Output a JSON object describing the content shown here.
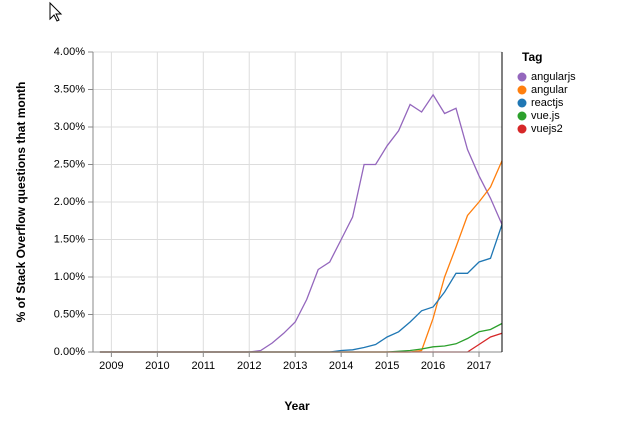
{
  "chart_data": {
    "type": "line",
    "x_label": "Year",
    "y_label": "% of Stack Overflow questions that month",
    "legend_title": "Tag",
    "legend_position": "right",
    "grid": true,
    "xlim": [
      2008.6,
      2017.5
    ],
    "xticks": [
      2009,
      2010,
      2011,
      2012,
      2013,
      2014,
      2015,
      2016,
      2017
    ],
    "ylim": [
      0,
      4
    ],
    "yticks": [
      {
        "value": 0,
        "label": "0.00%"
      },
      {
        "value": 0.5,
        "label": "0.50%"
      },
      {
        "value": 1,
        "label": "1.00%"
      },
      {
        "value": 1.5,
        "label": "1.50%"
      },
      {
        "value": 2,
        "label": "2.00%"
      },
      {
        "value": 2.5,
        "label": "2.50%"
      },
      {
        "value": 3,
        "label": "3.00%"
      },
      {
        "value": 3.5,
        "label": "3.50%"
      },
      {
        "value": 4,
        "label": "4.00%"
      }
    ],
    "x": [
      2008.75,
      2009,
      2009.25,
      2009.5,
      2009.75,
      2010,
      2010.25,
      2010.5,
      2010.75,
      2011,
      2011.25,
      2011.5,
      2011.75,
      2012,
      2012.25,
      2012.5,
      2012.75,
      2013,
      2013.25,
      2013.5,
      2013.75,
      2014,
      2014.25,
      2014.5,
      2014.75,
      2015,
      2015.25,
      2015.5,
      2015.75,
      2016,
      2016.25,
      2016.5,
      2016.75,
      2017,
      2017.25,
      2017.5
    ],
    "series": [
      {
        "name": "angularjs",
        "color": "#9467bd",
        "values": [
          0,
          0,
          0,
          0,
          0,
          0,
          0,
          0,
          0,
          0,
          0,
          0,
          0,
          0,
          0.02,
          0.12,
          0.25,
          0.4,
          0.7,
          1.1,
          1.2,
          1.5,
          1.8,
          2.5,
          2.5,
          2.75,
          2.95,
          3.3,
          3.2,
          3.43,
          3.18,
          3.25,
          2.7,
          2.35,
          2.05,
          1.7
        ]
      },
      {
        "name": "angular",
        "color": "#ff7f0e",
        "values": [
          0,
          0,
          0,
          0,
          0,
          0,
          0,
          0,
          0,
          0,
          0,
          0,
          0,
          0,
          0,
          0,
          0,
          0,
          0,
          0,
          0,
          0,
          0,
          0,
          0,
          0,
          0,
          0,
          0.02,
          0.45,
          1.0,
          1.4,
          1.82,
          2.0,
          2.2,
          2.55
        ]
      },
      {
        "name": "reactjs",
        "color": "#1f77b4",
        "values": [
          0,
          0,
          0,
          0,
          0,
          0,
          0,
          0,
          0,
          0,
          0,
          0,
          0,
          0,
          0,
          0,
          0,
          0,
          0,
          0,
          0,
          0.02,
          0.03,
          0.06,
          0.1,
          0.2,
          0.27,
          0.4,
          0.55,
          0.6,
          0.8,
          1.05,
          1.05,
          1.2,
          1.25,
          1.7
        ]
      },
      {
        "name": "vue.js",
        "color": "#2ca02c",
        "values": [
          0,
          0,
          0,
          0,
          0,
          0,
          0,
          0,
          0,
          0,
          0,
          0,
          0,
          0,
          0,
          0,
          0,
          0,
          0,
          0,
          0,
          0,
          0,
          0,
          0,
          0,
          0.01,
          0.02,
          0.04,
          0.07,
          0.08,
          0.11,
          0.18,
          0.27,
          0.3,
          0.38
        ]
      },
      {
        "name": "vuejs2",
        "color": "#d62728",
        "values": [
          0,
          0,
          0,
          0,
          0,
          0,
          0,
          0,
          0,
          0,
          0,
          0,
          0,
          0,
          0,
          0,
          0,
          0,
          0,
          0,
          0,
          0,
          0,
          0,
          0,
          0,
          0,
          0,
          0,
          0,
          0,
          0,
          0,
          0.1,
          0.2,
          0.25
        ]
      }
    ]
  }
}
